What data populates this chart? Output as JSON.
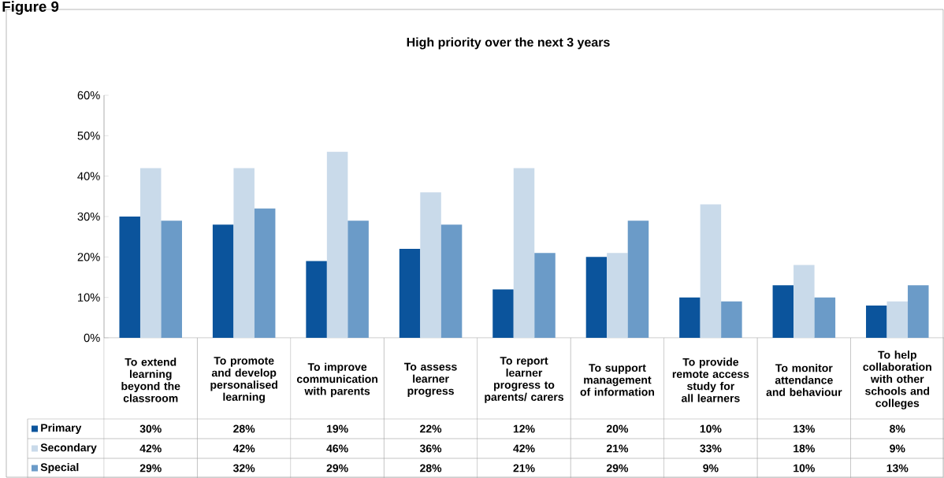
{
  "chart_data": {
    "type": "bar",
    "title": "High priority over the next 3 years",
    "annotations": [
      "Figure 9"
    ],
    "categories": [
      "To extend learning beyond the classroom",
      "To promote and develop personalised learning",
      "To improve communication with parents",
      "To assess learner progress",
      "To report learner progress to parents/ carers",
      "To support management of information",
      "To provide remote access study for all learners",
      "To monitor attendance and behaviour",
      "To help collaboration with other schools and colleges"
    ],
    "series": [
      {
        "name": "Primary",
        "color": "#0b549c",
        "values": [
          30,
          28,
          19,
          22,
          12,
          20,
          10,
          13,
          8
        ],
        "value_labels": [
          "30%",
          "28%",
          "19%",
          "22%",
          "12%",
          "20%",
          "10%",
          "13%",
          "8%"
        ]
      },
      {
        "name": "Secondary",
        "color": "#c9daea",
        "values": [
          42,
          42,
          46,
          36,
          42,
          21,
          33,
          18,
          9
        ],
        "value_labels": [
          "42%",
          "42%",
          "46%",
          "36%",
          "42%",
          "21%",
          "33%",
          "18%",
          "9%"
        ]
      },
      {
        "name": "Special",
        "color": "#6b9bc8",
        "values": [
          29,
          32,
          29,
          28,
          21,
          29,
          9,
          10,
          13
        ],
        "value_labels": [
          "29%",
          "32%",
          "29%",
          "28%",
          "21%",
          "29%",
          "9%",
          "10%",
          "13%"
        ]
      }
    ],
    "ylim": [
      0,
      60
    ],
    "yticks": [
      {
        "value": 0,
        "label": "0%"
      },
      {
        "value": 10,
        "label": "10%"
      },
      {
        "value": 20,
        "label": "20%"
      },
      {
        "value": 30,
        "label": "30%"
      },
      {
        "value": 40,
        "label": "40%"
      },
      {
        "value": 50,
        "label": "50%"
      },
      {
        "value": 60,
        "label": "60%"
      }
    ],
    "legend": "bottom"
  }
}
